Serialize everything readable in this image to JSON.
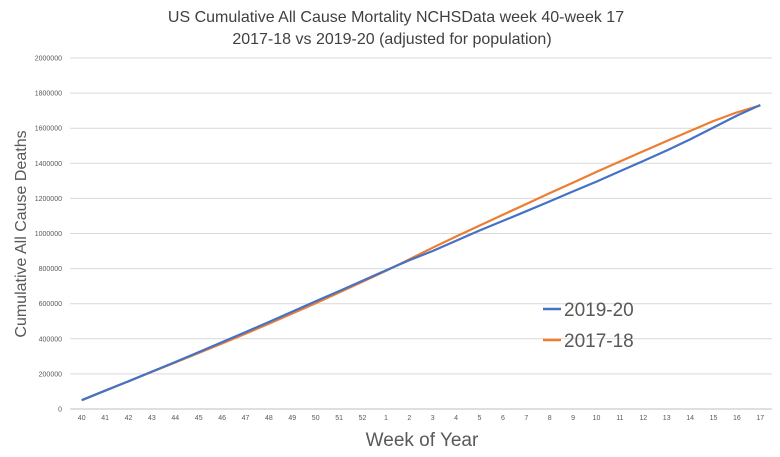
{
  "chart_data": {
    "type": "line",
    "title": [
      "US Cumulative All Cause Mortality NCHSData week 40-week 17",
      "2017-18 vs 2019-20  (adjusted for population)"
    ],
    "xlabel": "Week of Year",
    "ylabel": "Cumulative All Cause Deaths",
    "categories": [
      "40",
      "41",
      "42",
      "43",
      "44",
      "45",
      "46",
      "47",
      "48",
      "49",
      "50",
      "51",
      "52",
      "1",
      "2",
      "3",
      "4",
      "5",
      "6",
      "7",
      "8",
      "9",
      "10",
      "11",
      "12",
      "13",
      "14",
      "15",
      "16",
      "17"
    ],
    "y_ticks": [
      "0",
      "200000",
      "400000",
      "600000",
      "800000",
      "1000000",
      "1200000",
      "1400000",
      "1600000",
      "1800000",
      "2000000"
    ],
    "ylim": [
      0,
      2000000
    ],
    "grid": true,
    "legend_position": "right",
    "series": [
      {
        "name": "2019-20",
        "color": "#4472C4",
        "values": [
          50000,
          104000,
          158000,
          213000,
          268000,
          324000,
          381000,
          438000,
          496000,
          555000,
          614000,
          672000,
          731000,
          790000,
          848000,
          900000,
          959000,
          1017000,
          1072000,
          1127000,
          1183000,
          1240000,
          1296000,
          1355000,
          1413000,
          1473000,
          1536000,
          1604000,
          1672000,
          1732000
        ]
      },
      {
        "name": "2017-18",
        "color": "#ED7D31",
        "values": [
          50000,
          104000,
          158000,
          212000,
          265000,
          319000,
          373000,
          429000,
          486000,
          544000,
          603000,
          664000,
          725000,
          787000,
          853000,
          919000,
          983000,
          1045000,
          1107000,
          1168000,
          1230000,
          1290000,
          1351000,
          1410000,
          1469000,
          1527000,
          1584000,
          1641000,
          1690000,
          1730000
        ]
      }
    ]
  }
}
